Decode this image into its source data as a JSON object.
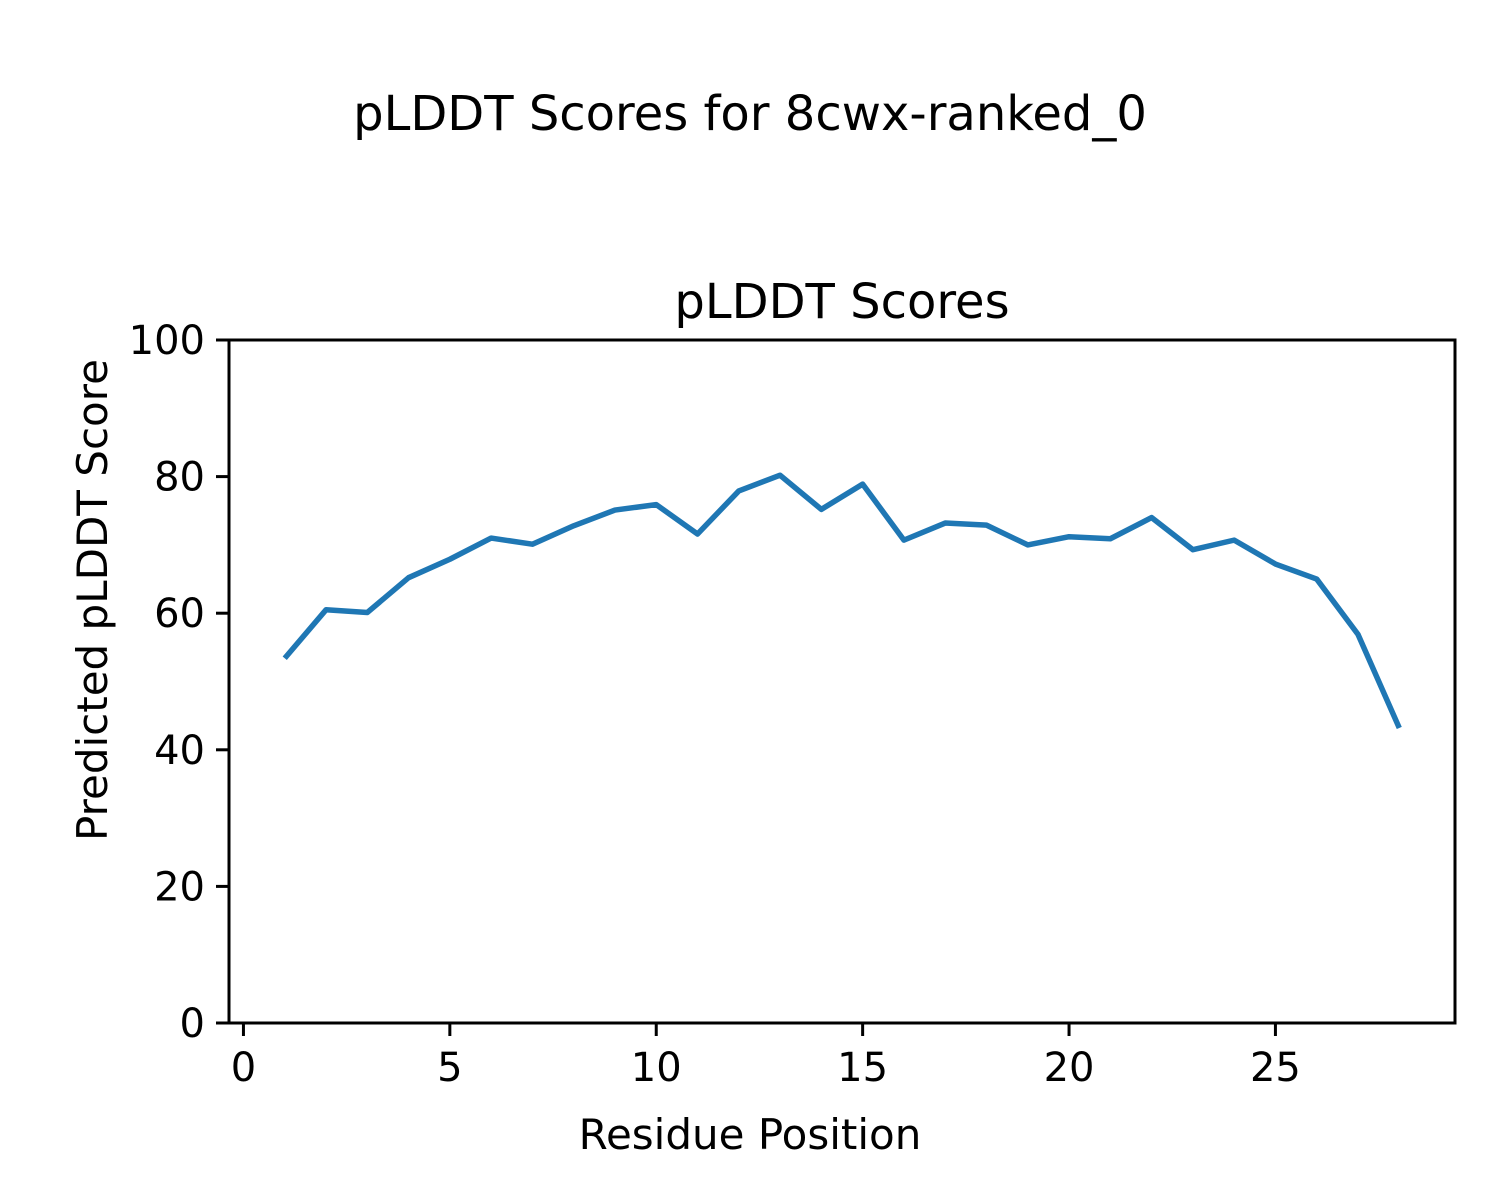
{
  "chart_data": {
    "type": "line",
    "figure_title": "pLDDT Scores for 8cwx-ranked_0",
    "axes_title": "pLDDT Scores",
    "xlabel": "Residue Position",
    "ylabel": "Predicted pLDDT Score",
    "x": [
      1,
      2,
      3,
      4,
      5,
      6,
      7,
      8,
      9,
      10,
      11,
      12,
      13,
      14,
      15,
      16,
      17,
      18,
      19,
      20,
      21,
      22,
      23,
      24,
      25,
      26,
      27,
      28
    ],
    "y": [
      53.4,
      60.5,
      60.1,
      65.2,
      67.9,
      71.0,
      70.1,
      72.8,
      75.1,
      75.9,
      71.6,
      77.9,
      80.2,
      75.2,
      78.9,
      70.7,
      73.2,
      72.9,
      70.0,
      71.2,
      70.9,
      74.0,
      69.3,
      70.7,
      67.2,
      65.0,
      56.9,
      43.2
    ],
    "xticks": [
      0,
      5,
      10,
      15,
      20,
      25
    ],
    "yticks": [
      0,
      20,
      40,
      60,
      80,
      100
    ],
    "xlim": [
      -0.35,
      29.35
    ],
    "ylim": [
      0,
      100
    ],
    "line_color": "#1f77b4",
    "spine_color": "#000000",
    "background_color": "#ffffff",
    "grid": "off",
    "legend": "none"
  }
}
